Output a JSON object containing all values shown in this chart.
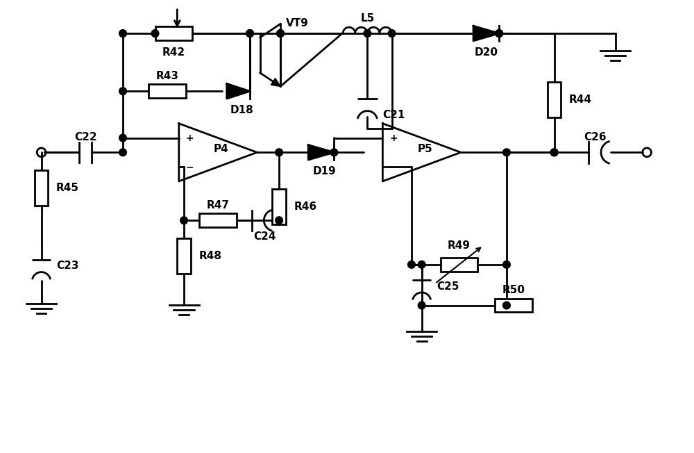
{
  "bg_color": "#ffffff",
  "line_color": "#000000",
  "lw": 2.0,
  "figsize": [
    10.0,
    6.52
  ],
  "dpi": 100,
  "xlim": [
    0,
    10
  ],
  "ylim": [
    0,
    6.52
  ]
}
